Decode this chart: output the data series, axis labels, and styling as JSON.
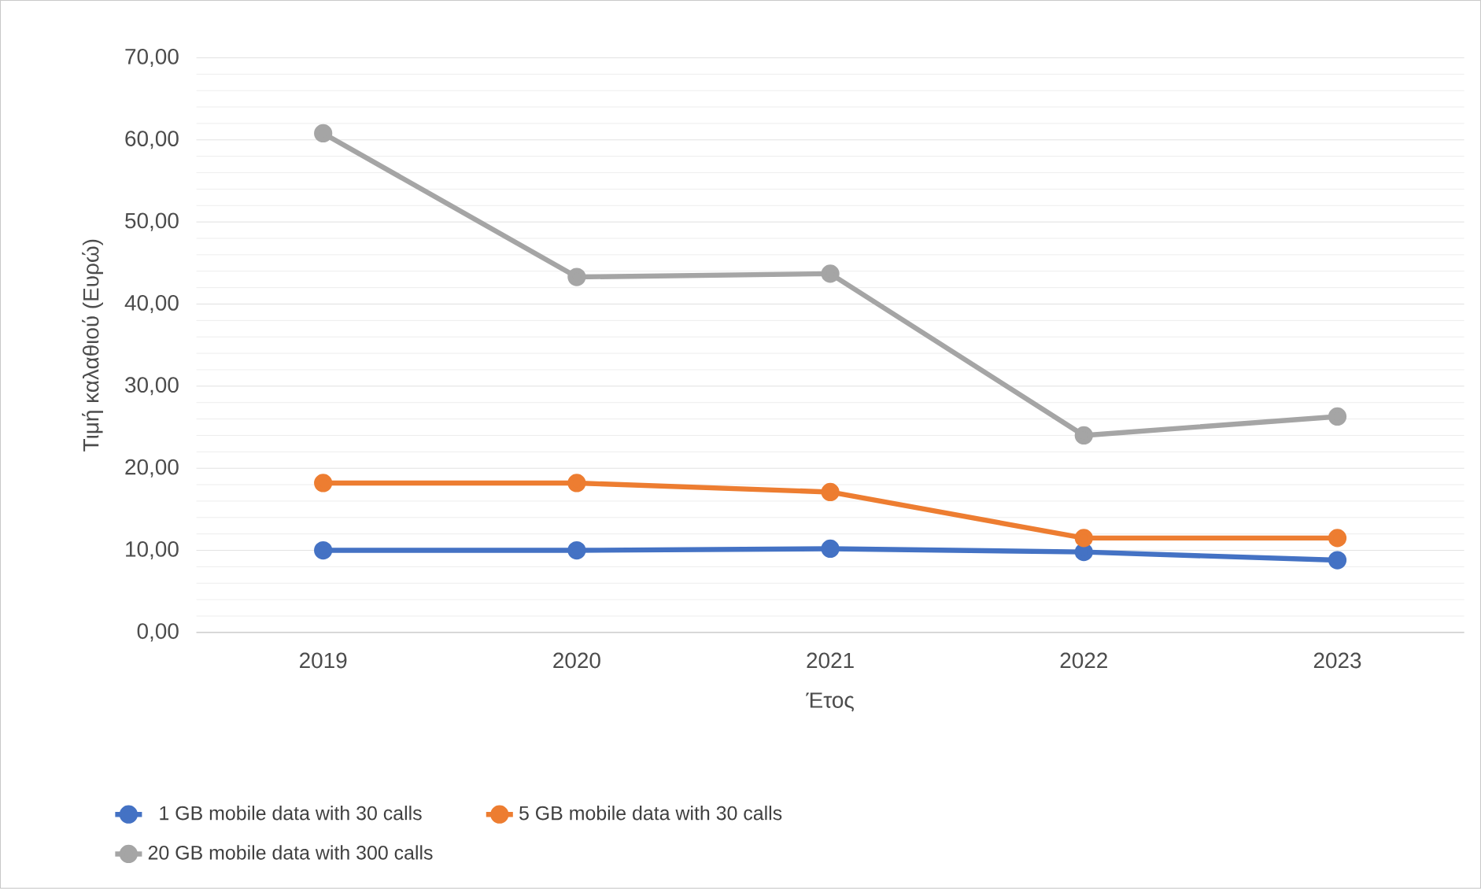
{
  "chart_data": {
    "type": "line",
    "xlabel": "Έτος",
    "ylabel": "Τιμή καλαθιού (Ευρώ)",
    "categories": [
      "2019",
      "2020",
      "2021",
      "2022",
      "2023"
    ],
    "ylim": [
      0,
      70
    ],
    "yticks": [
      {
        "value": 0,
        "label": "0,00"
      },
      {
        "value": 10,
        "label": "10,00"
      },
      {
        "value": 20,
        "label": "20,00"
      },
      {
        "value": 30,
        "label": "30,00"
      },
      {
        "value": 40,
        "label": "40,00"
      },
      {
        "value": 50,
        "label": "50,00"
      },
      {
        "value": 60,
        "label": "60,00"
      },
      {
        "value": 70,
        "label": "70,00"
      }
    ],
    "series": [
      {
        "name": "1 GB mobile data with 30 calls",
        "color": "#4472c4",
        "values": [
          10.0,
          10.0,
          10.2,
          9.8,
          8.8
        ]
      },
      {
        "name": "5 GB mobile data with 30 calls",
        "color": "#ed7d31",
        "values": [
          18.2,
          18.2,
          17.1,
          11.5,
          11.5
        ]
      },
      {
        "name": "20 GB mobile data with 300 calls",
        "color": "#a5a5a5",
        "values": [
          60.8,
          43.3,
          43.7,
          24.0,
          26.3
        ]
      }
    ],
    "grid": "y",
    "legend": "bottom",
    "marker": "circle",
    "line_style": "solid"
  }
}
